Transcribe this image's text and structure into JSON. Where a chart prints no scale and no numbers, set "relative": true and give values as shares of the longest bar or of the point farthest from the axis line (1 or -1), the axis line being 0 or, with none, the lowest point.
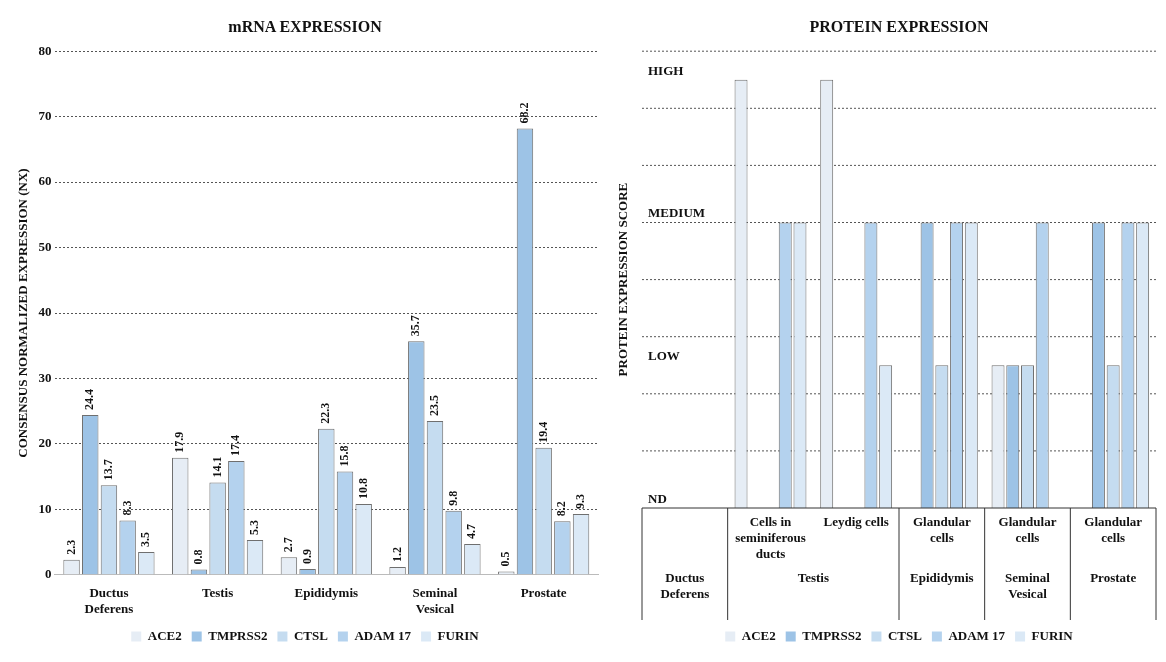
{
  "chart_data": [
    {
      "type": "bar",
      "title": "mRNA EXPRESSION",
      "ylabel": "CONSENSUS NORMALIZED EXPRESSION (NX)",
      "categories": [
        "Ductus Deferens",
        "Testis",
        "Epididymis",
        "Seminal Vesical",
        "Prostate"
      ],
      "series": [
        {
          "name": "ACE2",
          "color": "#e6edf5",
          "values": [
            2.3,
            17.9,
            2.7,
            1.2,
            0.5
          ]
        },
        {
          "name": "TMPRSS2",
          "color": "#9dc3e6",
          "values": [
            24.4,
            0.8,
            0.9,
            35.7,
            68.2
          ]
        },
        {
          "name": "CTSL",
          "color": "#c5dcf0",
          "values": [
            13.7,
            14.1,
            22.3,
            23.5,
            19.4
          ]
        },
        {
          "name": "ADAM 17",
          "color": "#b4d2ee",
          "values": [
            8.3,
            17.4,
            15.8,
            9.8,
            8.2
          ]
        },
        {
          "name": "FURIN",
          "color": "#dbe9f6",
          "values": [
            3.5,
            5.3,
            10.8,
            4.7,
            9.3
          ]
        }
      ],
      "ylim": [
        0,
        80
      ],
      "yticks": [
        0,
        10,
        20,
        30,
        40,
        50,
        60,
        70,
        80
      ],
      "grid": "y",
      "data_labels": true,
      "legend": "bottom"
    },
    {
      "type": "bar",
      "title": "PROTEIN EXPRESSION",
      "ylabel": "PROTEIN EXPRESSION SCORE",
      "categories": [
        null,
        "Cells in seminiferous ducts",
        "Leydig cells",
        "Glandular cells",
        "Glandular cells",
        "Glandular cells"
      ],
      "series": [
        {
          "name": "ACE2",
          "color": "#e6edf5",
          "values": [
            0,
            1,
            1,
            0,
            0.3333,
            0
          ]
        },
        {
          "name": "TMPRSS2",
          "color": "#9dc3e6",
          "values": [
            0,
            0,
            0,
            0.6667,
            0.3333,
            0.6667
          ]
        },
        {
          "name": "CTSL",
          "color": "#c5dcf0",
          "values": [
            0,
            0,
            0,
            0.3333,
            0.3333,
            0.3333
          ]
        },
        {
          "name": "ADAM 17",
          "color": "#b4d2ee",
          "values": [
            0,
            0.6667,
            0.6667,
            0.6667,
            0.6667,
            0.6667
          ]
        },
        {
          "name": "FURIN",
          "color": "#dbe9f6",
          "values": [
            0,
            0.6667,
            0.3333,
            0.6667,
            0,
            0.6667
          ]
        }
      ],
      "relative": true,
      "annotations": [
        "Ductus Deferens",
        "Testis",
        "Epididymis",
        "Seminal Vesical",
        "Prostate",
        "ND",
        "LOW",
        "MEDIUM",
        "HIGH"
      ],
      "grid": "y",
      "legend": "bottom"
    }
  ]
}
